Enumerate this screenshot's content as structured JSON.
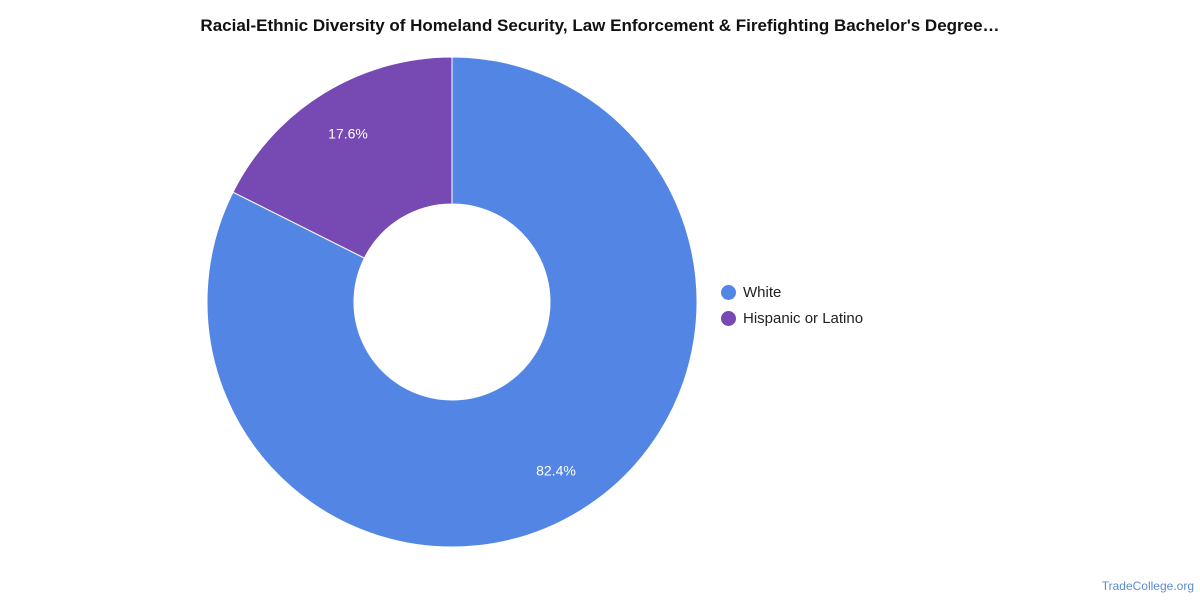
{
  "chart_data": {
    "type": "pie",
    "title": "Racial-Ethnic Diversity of Homeland Security, Law Enforcement & Firefighting Bachelor's Degree…",
    "donut": true,
    "legend_position": "right",
    "categories": [
      "White",
      "Hispanic or Latino"
    ],
    "values": [
      82.4,
      17.6
    ],
    "value_labels": [
      "82.4%",
      "17.6%"
    ],
    "colors": [
      "#5386e4",
      "#7649b3"
    ]
  },
  "source": {
    "label": "TradeCollege.org"
  }
}
